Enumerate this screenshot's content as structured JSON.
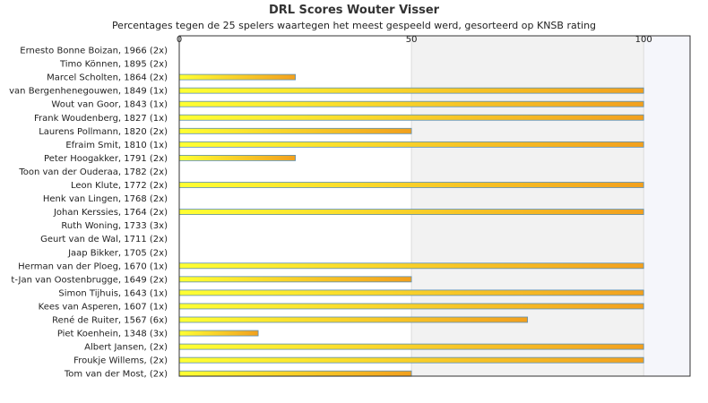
{
  "chart_data": {
    "type": "bar",
    "title": "DRL Scores Wouter Visser",
    "subtitle": "Percentages tegen de 25 spelers waartegen het meest gespeeld werd, gesorteerd op KNSB rating",
    "xlim": [
      0,
      110
    ],
    "x_ticks": [
      "0",
      "50",
      "100"
    ],
    "categories": [
      "Ernesto Bonne Boizan, 1966 (2x)",
      "Timo Können, 1895 (2x)",
      "Marcel Scholten, 1864 (2x)",
      "van Bergenhenegouwen, 1849 (1x)",
      "Wout van Goor, 1843 (1x)",
      "Frank Woudenberg, 1827 (1x)",
      "Laurens Pollmann, 1820 (2x)",
      "Efraim Smit, 1810 (1x)",
      "Peter Hoogakker, 1791 (2x)",
      "Toon van der Ouderaa, 1782 (2x)",
      "Leon Klute, 1772 (2x)",
      "Henk van Lingen, 1768 (2x)",
      "Johan Kerssies, 1764 (2x)",
      "Ruth Woning, 1733 (3x)",
      "Geurt van de Wal, 1711 (2x)",
      "Jaap Bikker, 1705 (2x)",
      "Herman van der Ploeg, 1670 (1x)",
      "t-Jan van Oostenbrugge, 1649 (2x)",
      "Simon Tijhuis, 1643 (1x)",
      "Kees van Asperen, 1607 (1x)",
      "René de Ruiter, 1567 (6x)",
      "Piet Koenhein, 1348 (3x)",
      "Albert Jansen,  (2x)",
      "Froukje Willems,  (2x)",
      "Tom van der Most,  (2x)"
    ],
    "values": [
      0,
      0,
      25,
      100,
      100,
      100,
      50,
      100,
      25,
      0,
      100,
      0,
      100,
      0,
      0,
      0,
      100,
      50,
      100,
      100,
      75,
      17,
      100,
      100,
      50
    ],
    "colors": {
      "bar_start": "#ffff33",
      "bar_end": "#f2a01e",
      "bar_border": "#5a8fb5",
      "band": "#f2f2f2",
      "band_right": "#f5f6fb"
    }
  }
}
